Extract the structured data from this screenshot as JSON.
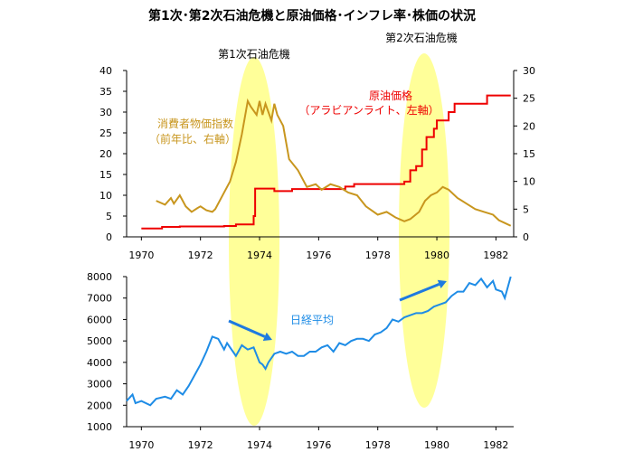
{
  "title": "第1次･第2次石油危機と原油価格･インフレ率･株価の状況",
  "colors": {
    "oil": "#ee0000",
    "cpi": "#c8961e",
    "nikkei": "#1e8ce6",
    "highlight": "#ffff99",
    "arrow": "#1e7ae0"
  },
  "chart_data": [
    {
      "type": "line",
      "annotations": [
        "第1次石油危機",
        "第2次石油危機"
      ],
      "series": [
        {
          "name": "原油価格（アラビアンライト、左軸）",
          "axis": "left",
          "label_lines": [
            "原油価格",
            "（アラビアンライト、左軸）"
          ],
          "x": [
            1970.0,
            1970.6,
            1970.7,
            1971.3,
            1972.4,
            1972.8,
            1973.2,
            1973.5,
            1973.8,
            1973.85,
            1974.0,
            1974.3,
            1974.5,
            1974.9,
            1975.1,
            1975.8,
            1976.4,
            1976.9,
            1977.2,
            1977.9,
            1978.4,
            1978.8,
            1978.9,
            1979.1,
            1979.3,
            1979.5,
            1979.65,
            1979.9,
            1980.0,
            1980.2,
            1980.4,
            1980.6,
            1981.2,
            1981.4,
            1981.7,
            1982.5
          ],
          "y": [
            2.0,
            2.0,
            2.4,
            2.5,
            2.5,
            2.6,
            3.0,
            3.0,
            5.0,
            11.6,
            11.6,
            11.6,
            11.0,
            11.0,
            11.5,
            11.5,
            11.5,
            12.1,
            12.7,
            12.7,
            12.7,
            12.7,
            13.3,
            16.0,
            17.0,
            21.0,
            24.0,
            26.0,
            28.0,
            28.0,
            30.0,
            32.0,
            32.0,
            32.0,
            34.0,
            34.0
          ]
        },
        {
          "name": "消費者物価指数（前年比、右軸）",
          "axis": "right",
          "label_lines": [
            "消費者物価指数",
            "（前年比、右軸）"
          ],
          "x": [
            1970.5,
            1970.8,
            1971.0,
            1971.1,
            1971.3,
            1971.5,
            1971.7,
            1971.9,
            1972.0,
            1972.2,
            1972.4,
            1972.5,
            1972.8,
            1973.0,
            1973.2,
            1973.4,
            1973.6,
            1973.7,
            1973.9,
            1974.0,
            1974.1,
            1974.2,
            1974.4,
            1974.5,
            1974.6,
            1974.8,
            1975.0,
            1975.3,
            1975.6,
            1975.9,
            1976.1,
            1976.4,
            1976.7,
            1977.0,
            1977.3,
            1977.6,
            1978.0,
            1978.3,
            1978.6,
            1978.9,
            1979.1,
            1979.4,
            1979.6,
            1979.8,
            1980.0,
            1980.2,
            1980.4,
            1980.7,
            1981.0,
            1981.3,
            1981.6,
            1981.9,
            1982.1,
            1982.3,
            1982.5
          ],
          "y": [
            6.5,
            5.8,
            7.0,
            6.0,
            7.5,
            5.5,
            4.5,
            5.2,
            5.5,
            4.8,
            4.5,
            5.0,
            8.0,
            10.0,
            13.5,
            18.5,
            24.5,
            23.5,
            22.0,
            24.5,
            22.0,
            24.0,
            21.0,
            24.0,
            22.0,
            20.0,
            14.0,
            12.0,
            9.0,
            9.5,
            8.5,
            9.5,
            9.0,
            8.0,
            7.5,
            5.5,
            4.0,
            4.5,
            3.5,
            2.8,
            3.2,
            4.5,
            6.5,
            7.5,
            8.0,
            9.0,
            8.5,
            7.0,
            6.0,
            5.0,
            4.5,
            4.0,
            3.0,
            2.5,
            2.0
          ]
        }
      ],
      "xlim": [
        1969.5,
        1982.6
      ],
      "x_ticks": [
        1970,
        1972,
        1974,
        1976,
        1978,
        1980,
        1982
      ],
      "ylim_left": [
        0,
        40
      ],
      "y_ticks_left": [
        0,
        5,
        10,
        15,
        20,
        25,
        30,
        35,
        40
      ],
      "ylim_right": [
        0,
        30
      ],
      "y_ticks_right": [
        0,
        5,
        10,
        15,
        20,
        25,
        30
      ],
      "grid": false
    },
    {
      "type": "line",
      "series": [
        {
          "name": "日経平均",
          "x": [
            1969.5,
            1969.7,
            1969.8,
            1970.0,
            1970.3,
            1970.5,
            1970.8,
            1971.0,
            1971.2,
            1971.4,
            1971.6,
            1971.8,
            1972.0,
            1972.2,
            1972.4,
            1972.6,
            1972.8,
            1972.9,
            1973.0,
            1973.1,
            1973.2,
            1973.4,
            1973.6,
            1973.8,
            1974.0,
            1974.1,
            1974.2,
            1974.3,
            1974.5,
            1974.7,
            1974.9,
            1975.1,
            1975.3,
            1975.5,
            1975.7,
            1975.9,
            1976.1,
            1976.3,
            1976.5,
            1976.7,
            1976.9,
            1977.1,
            1977.3,
            1977.5,
            1977.7,
            1977.9,
            1978.1,
            1978.3,
            1978.5,
            1978.7,
            1978.9,
            1979.1,
            1979.3,
            1979.5,
            1979.7,
            1979.9,
            1980.1,
            1980.3,
            1980.5,
            1980.7,
            1980.9,
            1981.1,
            1981.3,
            1981.5,
            1981.7,
            1981.9,
            1982.0,
            1982.2,
            1982.3,
            1982.5
          ],
          "y": [
            2200,
            2500,
            2100,
            2200,
            2000,
            2300,
            2400,
            2300,
            2700,
            2500,
            2900,
            3400,
            3900,
            4500,
            5200,
            5100,
            4600,
            4900,
            4700,
            4500,
            4300,
            4800,
            4600,
            4700,
            4000,
            3900,
            3700,
            4000,
            4400,
            4500,
            4400,
            4500,
            4300,
            4300,
            4500,
            4500,
            4700,
            4800,
            4500,
            4900,
            4800,
            5000,
            5100,
            5100,
            5000,
            5300,
            5400,
            5600,
            6000,
            5900,
            6100,
            6200,
            6300,
            6300,
            6400,
            6600,
            6700,
            6800,
            7100,
            7300,
            7300,
            7700,
            7600,
            7900,
            7500,
            7800,
            7400,
            7300,
            7000,
            8000
          ]
        }
      ],
      "xlim": [
        1969.5,
        1982.6
      ],
      "x_ticks": [
        1970,
        1972,
        1974,
        1976,
        1978,
        1980,
        1982
      ],
      "ylim": [
        1000,
        8000
      ],
      "y_ticks": [
        1000,
        2000,
        3000,
        4000,
        5000,
        6000,
        7000,
        8000
      ],
      "grid": false
    }
  ]
}
